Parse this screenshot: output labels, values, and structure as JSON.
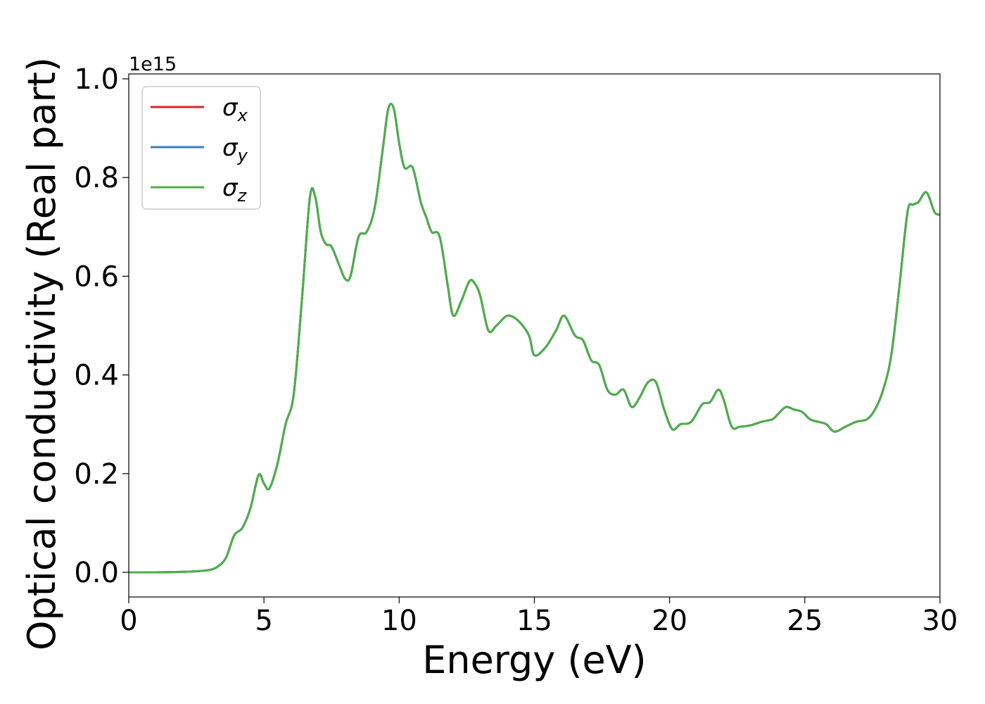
{
  "chart_data": {
    "type": "line",
    "title": "",
    "xlabel": "Energy (eV)",
    "ylabel": "Optical conductivity (Real part)",
    "y_offset_text": "1e15",
    "xlim": [
      0,
      30
    ],
    "ylim": [
      -0.05,
      1.01
    ],
    "x_ticks": [
      0,
      5,
      10,
      15,
      20,
      25,
      30
    ],
    "x_tick_labels": [
      "0",
      "5",
      "10",
      "15",
      "20",
      "25",
      "30"
    ],
    "y_ticks": [
      0.0,
      0.2,
      0.4,
      0.6,
      0.8,
      1.0
    ],
    "y_tick_labels": [
      "0.0",
      "0.2",
      "0.4",
      "0.6",
      "0.8",
      "1.0"
    ],
    "grid": false,
    "legend_position": "top-left",
    "series": [
      {
        "name": "σx",
        "symbol": "σ",
        "subscript": "x",
        "color": "#d62728",
        "x": [
          0,
          1,
          2,
          2.5,
          3,
          3.3,
          3.6,
          3.9,
          4.2,
          4.5,
          4.8,
          5.0,
          5.2,
          5.5,
          5.8,
          6.1,
          6.4,
          6.7,
          6.9,
          7.1,
          7.3,
          7.5,
          7.8,
          8.0,
          8.2,
          8.5,
          8.8,
          9.1,
          9.4,
          9.6,
          9.8,
          10.0,
          10.2,
          10.5,
          10.8,
          11.0,
          11.2,
          11.5,
          11.8,
          12.0,
          12.3,
          12.6,
          12.8,
          13.0,
          13.3,
          13.6,
          14.0,
          14.4,
          14.8,
          15.0,
          15.4,
          15.8,
          16.1,
          16.5,
          16.8,
          17.1,
          17.4,
          17.7,
          18.0,
          18.3,
          18.6,
          18.9,
          19.2,
          19.5,
          19.8,
          20.1,
          20.4,
          20.8,
          21.2,
          21.5,
          21.8,
          22.0,
          22.3,
          22.6,
          23.0,
          23.4,
          23.8,
          24.0,
          24.3,
          24.6,
          24.9,
          25.2,
          25.5,
          25.8,
          26.1,
          26.5,
          26.9,
          27.3,
          27.6,
          27.9,
          28.2,
          28.5,
          28.8,
          29.0,
          29.2,
          29.5,
          29.8,
          30.0
        ],
        "y": [
          0.0,
          0.0,
          0.001,
          0.002,
          0.005,
          0.012,
          0.03,
          0.075,
          0.09,
          0.13,
          0.197,
          0.18,
          0.17,
          0.22,
          0.3,
          0.36,
          0.55,
          0.76,
          0.76,
          0.69,
          0.665,
          0.66,
          0.62,
          0.595,
          0.6,
          0.68,
          0.69,
          0.74,
          0.86,
          0.94,
          0.94,
          0.87,
          0.82,
          0.82,
          0.75,
          0.72,
          0.69,
          0.68,
          0.58,
          0.52,
          0.55,
          0.59,
          0.585,
          0.56,
          0.49,
          0.5,
          0.52,
          0.51,
          0.48,
          0.44,
          0.455,
          0.49,
          0.52,
          0.48,
          0.47,
          0.43,
          0.42,
          0.37,
          0.36,
          0.37,
          0.335,
          0.355,
          0.385,
          0.385,
          0.33,
          0.29,
          0.3,
          0.305,
          0.34,
          0.345,
          0.37,
          0.35,
          0.295,
          0.295,
          0.298,
          0.305,
          0.31,
          0.32,
          0.335,
          0.33,
          0.325,
          0.31,
          0.305,
          0.3,
          0.285,
          0.295,
          0.305,
          0.31,
          0.33,
          0.37,
          0.44,
          0.58,
          0.73,
          0.745,
          0.75,
          0.77,
          0.73,
          0.725
        ]
      },
      {
        "name": "σy",
        "symbol": "σ",
        "subscript": "y",
        "color": "#377eb8",
        "x": [
          0,
          1,
          2,
          2.5,
          3,
          3.3,
          3.6,
          3.9,
          4.2,
          4.5,
          4.8,
          5.0,
          5.2,
          5.5,
          5.8,
          6.1,
          6.4,
          6.7,
          6.9,
          7.1,
          7.3,
          7.5,
          7.8,
          8.0,
          8.2,
          8.5,
          8.8,
          9.1,
          9.4,
          9.6,
          9.8,
          10.0,
          10.2,
          10.5,
          10.8,
          11.0,
          11.2,
          11.5,
          11.8,
          12.0,
          12.3,
          12.6,
          12.8,
          13.0,
          13.3,
          13.6,
          14.0,
          14.4,
          14.8,
          15.0,
          15.4,
          15.8,
          16.1,
          16.5,
          16.8,
          17.1,
          17.4,
          17.7,
          18.0,
          18.3,
          18.6,
          18.9,
          19.2,
          19.5,
          19.8,
          20.1,
          20.4,
          20.8,
          21.2,
          21.5,
          21.8,
          22.0,
          22.3,
          22.6,
          23.0,
          23.4,
          23.8,
          24.0,
          24.3,
          24.6,
          24.9,
          25.2,
          25.5,
          25.8,
          26.1,
          26.5,
          26.9,
          27.3,
          27.6,
          27.9,
          28.2,
          28.5,
          28.8,
          29.0,
          29.2,
          29.5,
          29.8,
          30.0
        ],
        "y": [
          0.0,
          0.0,
          0.001,
          0.002,
          0.005,
          0.012,
          0.03,
          0.075,
          0.09,
          0.13,
          0.197,
          0.18,
          0.17,
          0.22,
          0.3,
          0.36,
          0.55,
          0.76,
          0.76,
          0.69,
          0.665,
          0.66,
          0.62,
          0.595,
          0.6,
          0.68,
          0.69,
          0.74,
          0.86,
          0.94,
          0.94,
          0.87,
          0.82,
          0.82,
          0.75,
          0.72,
          0.69,
          0.68,
          0.58,
          0.52,
          0.55,
          0.59,
          0.585,
          0.56,
          0.49,
          0.5,
          0.52,
          0.51,
          0.48,
          0.44,
          0.455,
          0.49,
          0.52,
          0.48,
          0.47,
          0.43,
          0.42,
          0.37,
          0.36,
          0.37,
          0.335,
          0.355,
          0.385,
          0.385,
          0.33,
          0.29,
          0.3,
          0.305,
          0.34,
          0.345,
          0.37,
          0.35,
          0.295,
          0.295,
          0.298,
          0.305,
          0.31,
          0.32,
          0.335,
          0.33,
          0.325,
          0.31,
          0.305,
          0.3,
          0.285,
          0.295,
          0.305,
          0.31,
          0.33,
          0.37,
          0.44,
          0.58,
          0.73,
          0.745,
          0.75,
          0.77,
          0.73,
          0.725
        ]
      },
      {
        "name": "σz",
        "symbol": "σ",
        "subscript": "z",
        "color": "#4daf4a",
        "x": [
          0,
          1,
          2,
          2.5,
          3,
          3.3,
          3.6,
          3.9,
          4.2,
          4.5,
          4.8,
          5.0,
          5.2,
          5.5,
          5.8,
          6.1,
          6.4,
          6.7,
          6.9,
          7.1,
          7.3,
          7.5,
          7.8,
          8.0,
          8.2,
          8.5,
          8.8,
          9.1,
          9.4,
          9.6,
          9.8,
          10.0,
          10.2,
          10.5,
          10.8,
          11.0,
          11.2,
          11.5,
          11.8,
          12.0,
          12.3,
          12.6,
          12.8,
          13.0,
          13.3,
          13.6,
          14.0,
          14.4,
          14.8,
          15.0,
          15.4,
          15.8,
          16.1,
          16.5,
          16.8,
          17.1,
          17.4,
          17.7,
          18.0,
          18.3,
          18.6,
          18.9,
          19.2,
          19.5,
          19.8,
          20.1,
          20.4,
          20.8,
          21.2,
          21.5,
          21.8,
          22.0,
          22.3,
          22.6,
          23.0,
          23.4,
          23.8,
          24.0,
          24.3,
          24.6,
          24.9,
          25.2,
          25.5,
          25.8,
          26.1,
          26.5,
          26.9,
          27.3,
          27.6,
          27.9,
          28.2,
          28.5,
          28.8,
          29.0,
          29.2,
          29.5,
          29.8,
          30.0
        ],
        "y": [
          0.0,
          0.0,
          0.001,
          0.002,
          0.005,
          0.012,
          0.03,
          0.075,
          0.09,
          0.13,
          0.197,
          0.18,
          0.17,
          0.22,
          0.3,
          0.36,
          0.55,
          0.76,
          0.76,
          0.69,
          0.665,
          0.66,
          0.62,
          0.595,
          0.6,
          0.68,
          0.69,
          0.74,
          0.86,
          0.94,
          0.94,
          0.87,
          0.82,
          0.82,
          0.75,
          0.72,
          0.69,
          0.68,
          0.58,
          0.52,
          0.55,
          0.59,
          0.585,
          0.56,
          0.49,
          0.5,
          0.52,
          0.51,
          0.48,
          0.44,
          0.455,
          0.49,
          0.52,
          0.48,
          0.47,
          0.43,
          0.42,
          0.37,
          0.36,
          0.37,
          0.335,
          0.355,
          0.385,
          0.385,
          0.33,
          0.29,
          0.3,
          0.305,
          0.34,
          0.345,
          0.37,
          0.35,
          0.295,
          0.295,
          0.298,
          0.305,
          0.31,
          0.32,
          0.335,
          0.33,
          0.325,
          0.31,
          0.305,
          0.3,
          0.285,
          0.295,
          0.305,
          0.31,
          0.33,
          0.37,
          0.44,
          0.58,
          0.73,
          0.745,
          0.75,
          0.77,
          0.73,
          0.725
        ]
      }
    ]
  }
}
